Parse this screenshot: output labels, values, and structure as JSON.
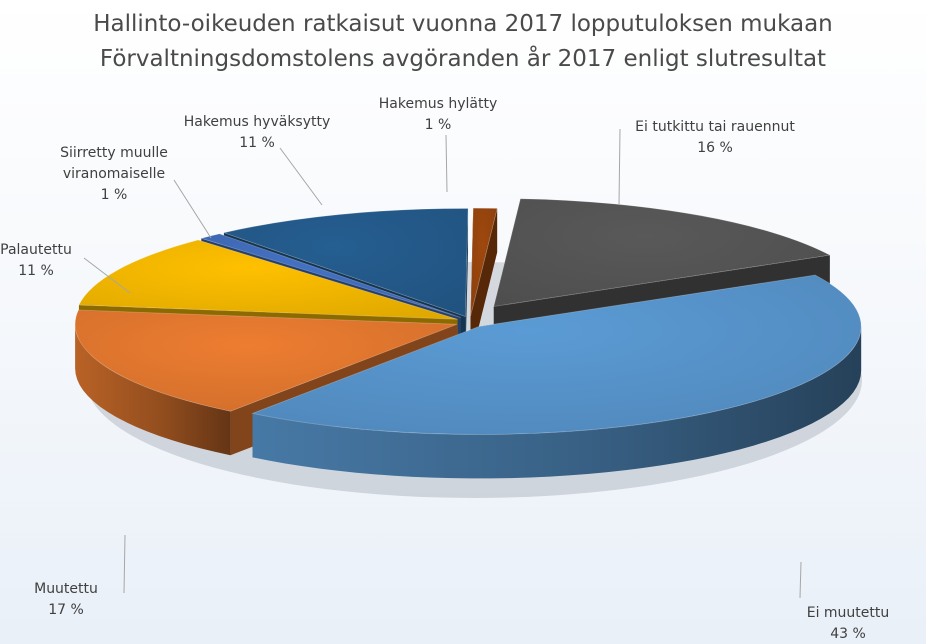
{
  "chart_data": {
    "type": "pie",
    "title_lines": [
      "Hallinto-oikeuden ratkaisut vuonna 2017 lopputuloksen mukaan",
      "Förvaltningsdomstolens avgöranden år 2017 enligt slutresultat"
    ],
    "slices": [
      {
        "label_lines": [
          "Ei tutkittu tai rauennut"
        ],
        "pct_label": "16 %",
        "value": 16,
        "color": "#595959"
      },
      {
        "label_lines": [
          "Ei muutettu"
        ],
        "pct_label": "43 %",
        "value": 43,
        "color": "#5b9bd5"
      },
      {
        "label_lines": [
          "Muutettu"
        ],
        "pct_label": "17 %",
        "value": 17,
        "color": "#ed7d31"
      },
      {
        "label_lines": [
          "Palautettu"
        ],
        "pct_label": "11 %",
        "value": 11,
        "color": "#ffc000"
      },
      {
        "label_lines": [
          "Siirretty muulle",
          "viranomaiselle"
        ],
        "pct_label": "1 %",
        "value": 1,
        "color": "#4472c4"
      },
      {
        "label_lines": [
          "Hakemus hyväksytty"
        ],
        "pct_label": "11 %",
        "value": 11,
        "color": "#255e91"
      },
      {
        "label_lines": [
          "Hakemus hylätty"
        ],
        "pct_label": "1 %",
        "value": 1,
        "color": "#9e480e"
      }
    ],
    "legend": "none",
    "style": "3d-exploded"
  }
}
